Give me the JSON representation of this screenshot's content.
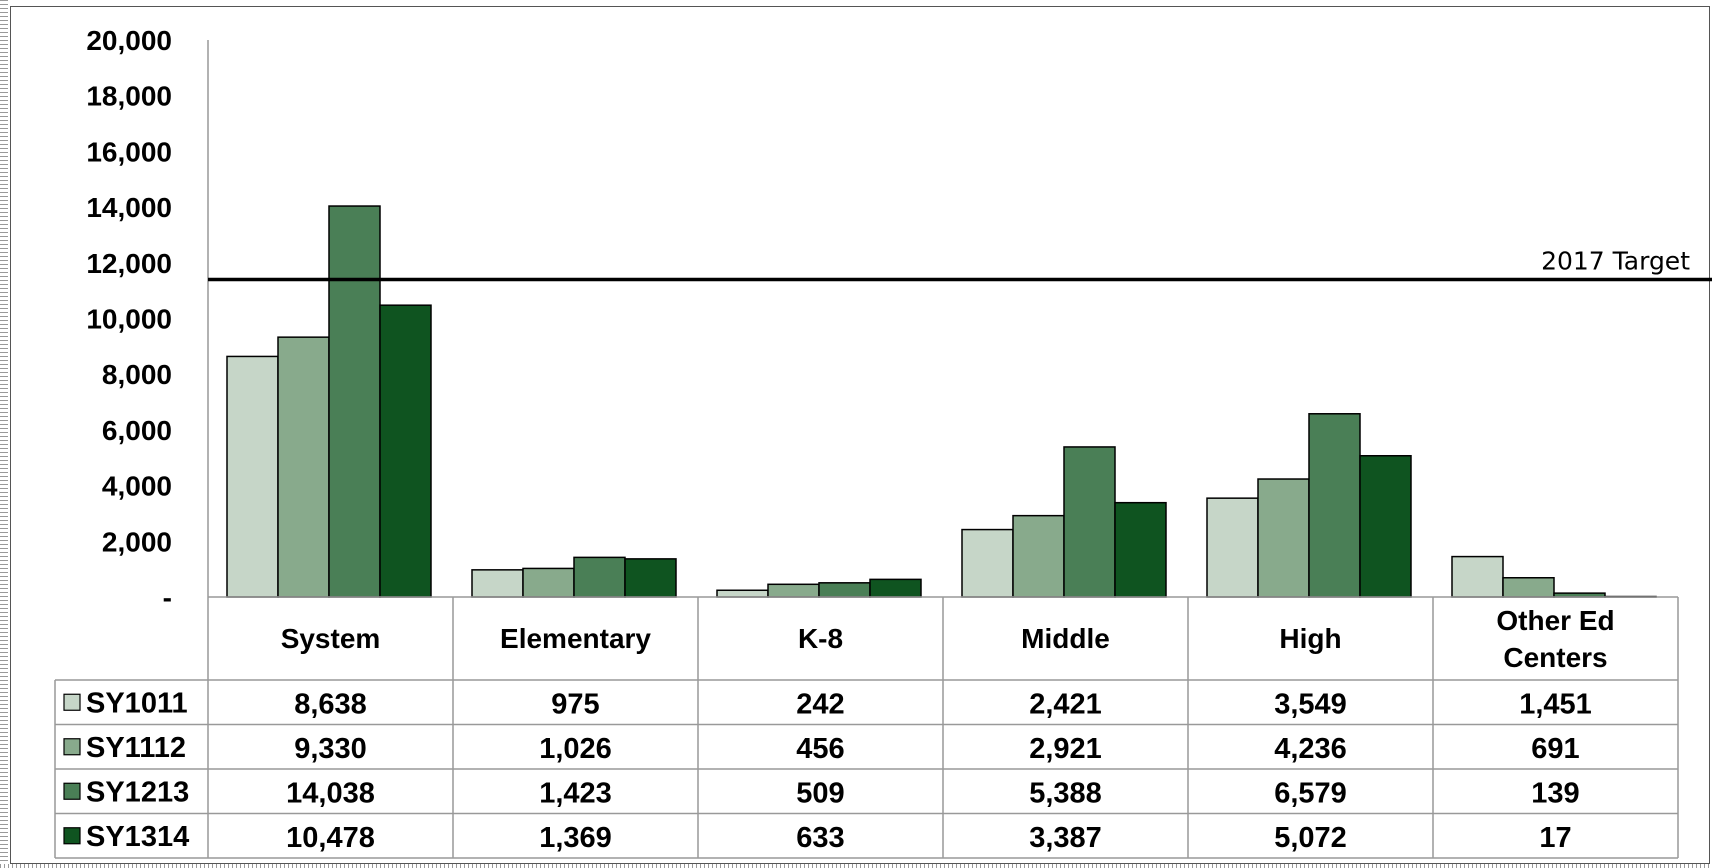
{
  "chart_data": {
    "type": "bar",
    "categories": [
      "System",
      "Elementary",
      "K-8",
      "Middle",
      "High",
      "Other Ed Centers"
    ],
    "series": [
      {
        "name": "SY1011",
        "values": [
          8638,
          975,
          242,
          2421,
          3549,
          1451
        ],
        "value_labels": [
          "8,638",
          "975",
          "242",
          "2,421",
          "3,549",
          "1,451"
        ],
        "color": "#c6d6c8"
      },
      {
        "name": "SY1112",
        "values": [
          9330,
          1026,
          456,
          2921,
          4236,
          691
        ],
        "value_labels": [
          "9,330",
          "1,026",
          "456",
          "2,921",
          "4,236",
          "691"
        ],
        "color": "#88aa8c"
      },
      {
        "name": "SY1213",
        "values": [
          14038,
          1423,
          509,
          5388,
          6579,
          139
        ],
        "value_labels": [
          "14,038",
          "1,423",
          "509",
          "5,388",
          "6,579",
          "139"
        ],
        "color": "#4a7f56"
      },
      {
        "name": "SY1314",
        "values": [
          10478,
          1369,
          633,
          3387,
          5072,
          17
        ],
        "value_labels": [
          "10,478",
          "1,369",
          "633",
          "3,387",
          "5,072",
          "17"
        ],
        "color": "#0f5420"
      }
    ],
    "ylim": [
      0,
      20000
    ],
    "y_ticks": [
      0,
      2000,
      4000,
      6000,
      8000,
      10000,
      12000,
      14000,
      16000,
      18000,
      20000
    ],
    "y_tick_labels": [
      "-",
      "2,000",
      "4,000",
      "6,000",
      "8,000",
      "10,000",
      "12,000",
      "14,000",
      "16,000",
      "18,000",
      "20,000"
    ],
    "target": {
      "label": "2017 Target",
      "value": 11400
    },
    "legend": "data-table",
    "grid": false
  }
}
